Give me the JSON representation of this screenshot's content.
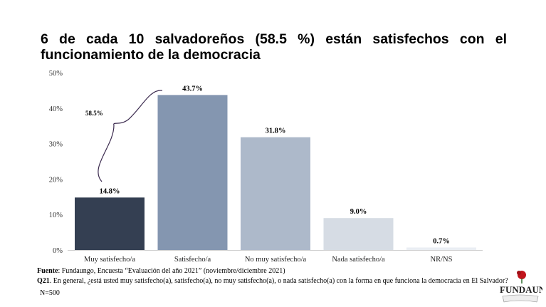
{
  "title": "6 de cada 10 salvadoreños (58.5 %) están satisfechos con el funcionamiento de la democracia",
  "chart_data": {
    "type": "bar",
    "categories": [
      "Muy satisfecho/a",
      "Satisfecho/a",
      "No muy satisfecho/a",
      "Nada satisfecho/a",
      "NR/NS"
    ],
    "values": [
      14.8,
      43.7,
      31.8,
      9.0,
      0.7
    ],
    "data_labels": [
      "14.8%",
      "43.7%",
      "31.8%",
      "9.0%",
      "0.7%"
    ],
    "colors": [
      "#343f52",
      "#8496b0",
      "#adb9ca",
      "#d6dce4",
      "#eaeef3"
    ],
    "yticks": [
      "0%",
      "10%",
      "20%",
      "30%",
      "40%",
      "50%"
    ],
    "ylim": [
      0,
      50
    ],
    "grid": false,
    "annotation": "58.5%"
  },
  "footer": {
    "source_label": "Fuente",
    "source_text": ": Fundaungo, Encuesta “Evaluación del año 2021” (noviembre/diciembre 2021)",
    "question_label": "Q21",
    "question_text": ". En general, ¿está usted muy satisfecho(a), satisfecho(a), no muy satisfecho(a), o nada satisfecho(a) con la forma en que funciona la democracia en El Salvador?",
    "n": "N=500"
  },
  "logo": "FundaUngo"
}
